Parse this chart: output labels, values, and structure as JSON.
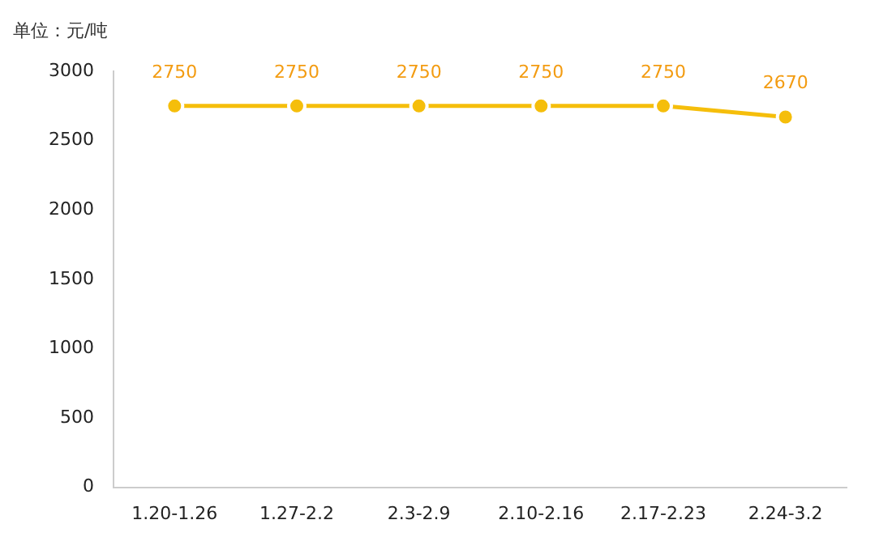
{
  "chart_data": {
    "type": "line",
    "ylabel": "单位：元/吨",
    "categories": [
      "1.20-1.26",
      "1.27-2.2",
      "2.3-2.9",
      "2.10-2.16",
      "2.17-2.23",
      "2.24-3.2"
    ],
    "series": [
      {
        "color": "#f5be0b",
        "values": [
          2750,
          2750,
          2750,
          2750,
          2750,
          2670
        ]
      }
    ],
    "ylim": [
      0,
      3000
    ],
    "yticks": [
      0,
      500,
      1000,
      1500,
      2000,
      2500,
      3000
    ],
    "grid": false,
    "legend": false,
    "marker": "circle",
    "line_style": "solid",
    "data_labels": true
  }
}
